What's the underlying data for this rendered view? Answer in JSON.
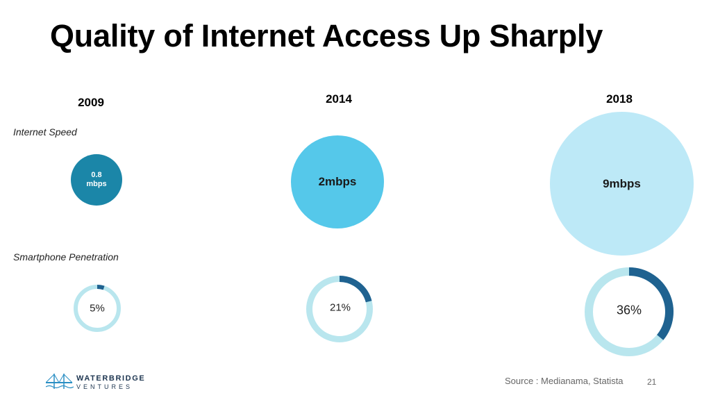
{
  "title": "Quality of Internet Access Up Sharply",
  "row_labels": {
    "speed": "Internet Speed",
    "penetration": "Smartphone Penetration"
  },
  "colors": {
    "speed_2009": "#1b86a8",
    "speed_2014": "#55c8ea",
    "speed_2018": "#bde9f7",
    "donut_filled": "#1f6290",
    "donut_track": "#b9e6ee"
  },
  "chart_data": {
    "type": "bubble-and-donut",
    "years": [
      "2009",
      "2014",
      "2018"
    ],
    "internet_speed": {
      "label": "Internet Speed",
      "unit": "mbps",
      "values": [
        0.8,
        2,
        9
      ],
      "labels": [
        [
          "0.8",
          "mbps"
        ],
        [
          "2mbps"
        ],
        [
          "9mbps"
        ]
      ]
    },
    "smartphone_penetration": {
      "label": "Smartphone Penetration",
      "unit": "%",
      "values": [
        5,
        21,
        36
      ],
      "labels": [
        "5%",
        "21%",
        "36%"
      ]
    }
  },
  "logo": {
    "line1": "WATERBRIDGE",
    "line2": "VENTURES",
    "icon": "bridge-icon"
  },
  "footer": {
    "source": "Source : Medianama, Statista",
    "page_number": "21"
  }
}
